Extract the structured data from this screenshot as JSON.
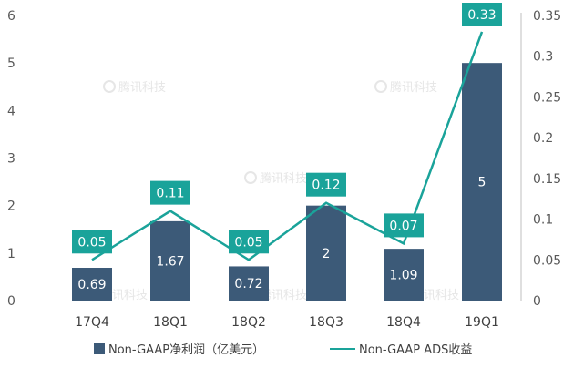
{
  "chart_data": {
    "type": "bar",
    "categories": [
      "17Q4",
      "18Q1",
      "18Q2",
      "18Q3",
      "18Q4",
      "19Q1"
    ],
    "series": [
      {
        "name": "Non-GAAP净利润（亿美元）",
        "type": "bar",
        "axis": "left",
        "values": [
          0.69,
          1.67,
          0.72,
          2,
          1.09,
          5
        ],
        "labels": [
          "0.69",
          "1.67",
          "0.72",
          "2",
          "1.09",
          "5"
        ],
        "color": "#3c5a78"
      },
      {
        "name": "Non-GAAP ADS收益",
        "type": "line",
        "axis": "right",
        "values": [
          0.05,
          0.11,
          0.05,
          0.12,
          0.07,
          0.33
        ],
        "labels": [
          "0.05",
          "0.11",
          "0.05",
          "0.12",
          "0.07",
          "0.33"
        ],
        "color": "#1aa39a"
      }
    ],
    "y_left": {
      "ylim": [
        0,
        6
      ],
      "ticks": [
        "0",
        "1",
        "2",
        "3",
        "4",
        "5",
        "6"
      ]
    },
    "y_right": {
      "ylim": [
        0,
        0.35
      ],
      "ticks": [
        "0",
        "0.05",
        "0.1",
        "0.15",
        "0.2",
        "0.25",
        "0.3",
        "0.35"
      ]
    },
    "grid": false,
    "legend_position": "bottom",
    "watermark": "腾讯科技"
  }
}
